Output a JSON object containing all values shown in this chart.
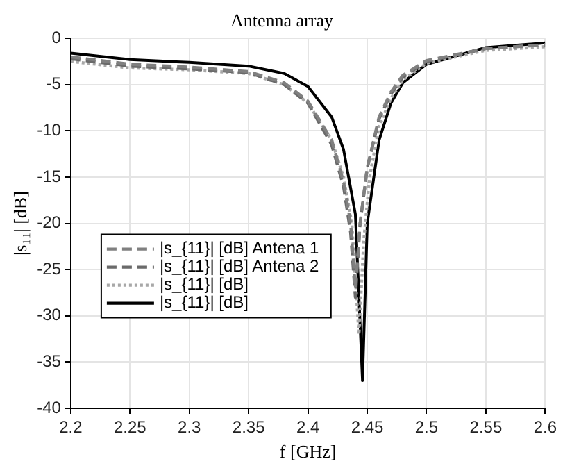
{
  "chart_data": {
    "type": "line",
    "title": "Antenna array",
    "xlabel": "f [GHz]",
    "ylabel": "|s₁₁| [dB]",
    "xlim": [
      2.2,
      2.6
    ],
    "xticks": [
      2.2,
      2.25,
      2.3,
      2.35,
      2.4,
      2.45,
      2.5,
      2.55,
      2.6
    ],
    "ylim": [
      -40,
      0
    ],
    "yticks": [
      -40,
      -35,
      -30,
      -25,
      -20,
      -15,
      -10,
      -5,
      0
    ],
    "grid": true,
    "legend": "left",
    "marker": "none",
    "series": [
      {
        "name": "|s_{11}| [dB] Antena 1",
        "color": "#808080",
        "line_style": "dashed",
        "x": [
          2.2,
          2.25,
          2.3,
          2.35,
          2.38,
          2.4,
          2.42,
          2.43,
          2.436,
          2.44,
          2.444,
          2.45,
          2.46,
          2.47,
          2.48,
          2.5,
          2.55,
          2.6
        ],
        "values": [
          -2.0,
          -2.8,
          -3.1,
          -3.6,
          -4.8,
          -6.8,
          -11,
          -15.5,
          -20,
          -27,
          -20,
          -14,
          -8.5,
          -5.8,
          -4.0,
          -2.4,
          -1.1,
          -0.7
        ]
      },
      {
        "name": "|s_{11}| [dB] Antena 2",
        "color": "#6a6a6a",
        "line_style": "dashed",
        "x": [
          2.2,
          2.25,
          2.3,
          2.35,
          2.38,
          2.4,
          2.42,
          2.43,
          2.436,
          2.44,
          2.444,
          2.45,
          2.46,
          2.47,
          2.48,
          2.5,
          2.55,
          2.6
        ],
        "values": [
          -2.2,
          -3.0,
          -3.3,
          -3.7,
          -5.0,
          -7.0,
          -11.5,
          -16,
          -21,
          -28,
          -20,
          -14,
          -8.7,
          -6.0,
          -4.2,
          -2.5,
          -1.1,
          -0.7
        ]
      },
      {
        "name": "|s_{11}| [dB]",
        "color": "#a8a8a8",
        "line_style": "dotted",
        "x": [
          2.2,
          2.25,
          2.3,
          2.35,
          2.38,
          2.4,
          2.42,
          2.43,
          2.437,
          2.443,
          2.447,
          2.452,
          2.46,
          2.47,
          2.48,
          2.5,
          2.55,
          2.6
        ],
        "values": [
          -2.5,
          -3.2,
          -3.4,
          -3.8,
          -5.0,
          -7.0,
          -11,
          -15,
          -20,
          -32,
          -22,
          -15,
          -9.5,
          -6.5,
          -4.5,
          -2.7,
          -1.3,
          -0.9
        ]
      },
      {
        "name": "|s_{11}| [dB]",
        "color": "#000000",
        "line_style": "solid",
        "x": [
          2.2,
          2.25,
          2.3,
          2.35,
          2.38,
          2.4,
          2.42,
          2.43,
          2.44,
          2.446,
          2.45,
          2.46,
          2.47,
          2.48,
          2.5,
          2.55,
          2.6
        ],
        "values": [
          -1.6,
          -2.3,
          -2.6,
          -3.0,
          -3.8,
          -5.2,
          -8.5,
          -12,
          -19,
          -37,
          -20,
          -11,
          -7,
          -4.8,
          -2.8,
          -1.0,
          -0.5
        ]
      }
    ]
  }
}
